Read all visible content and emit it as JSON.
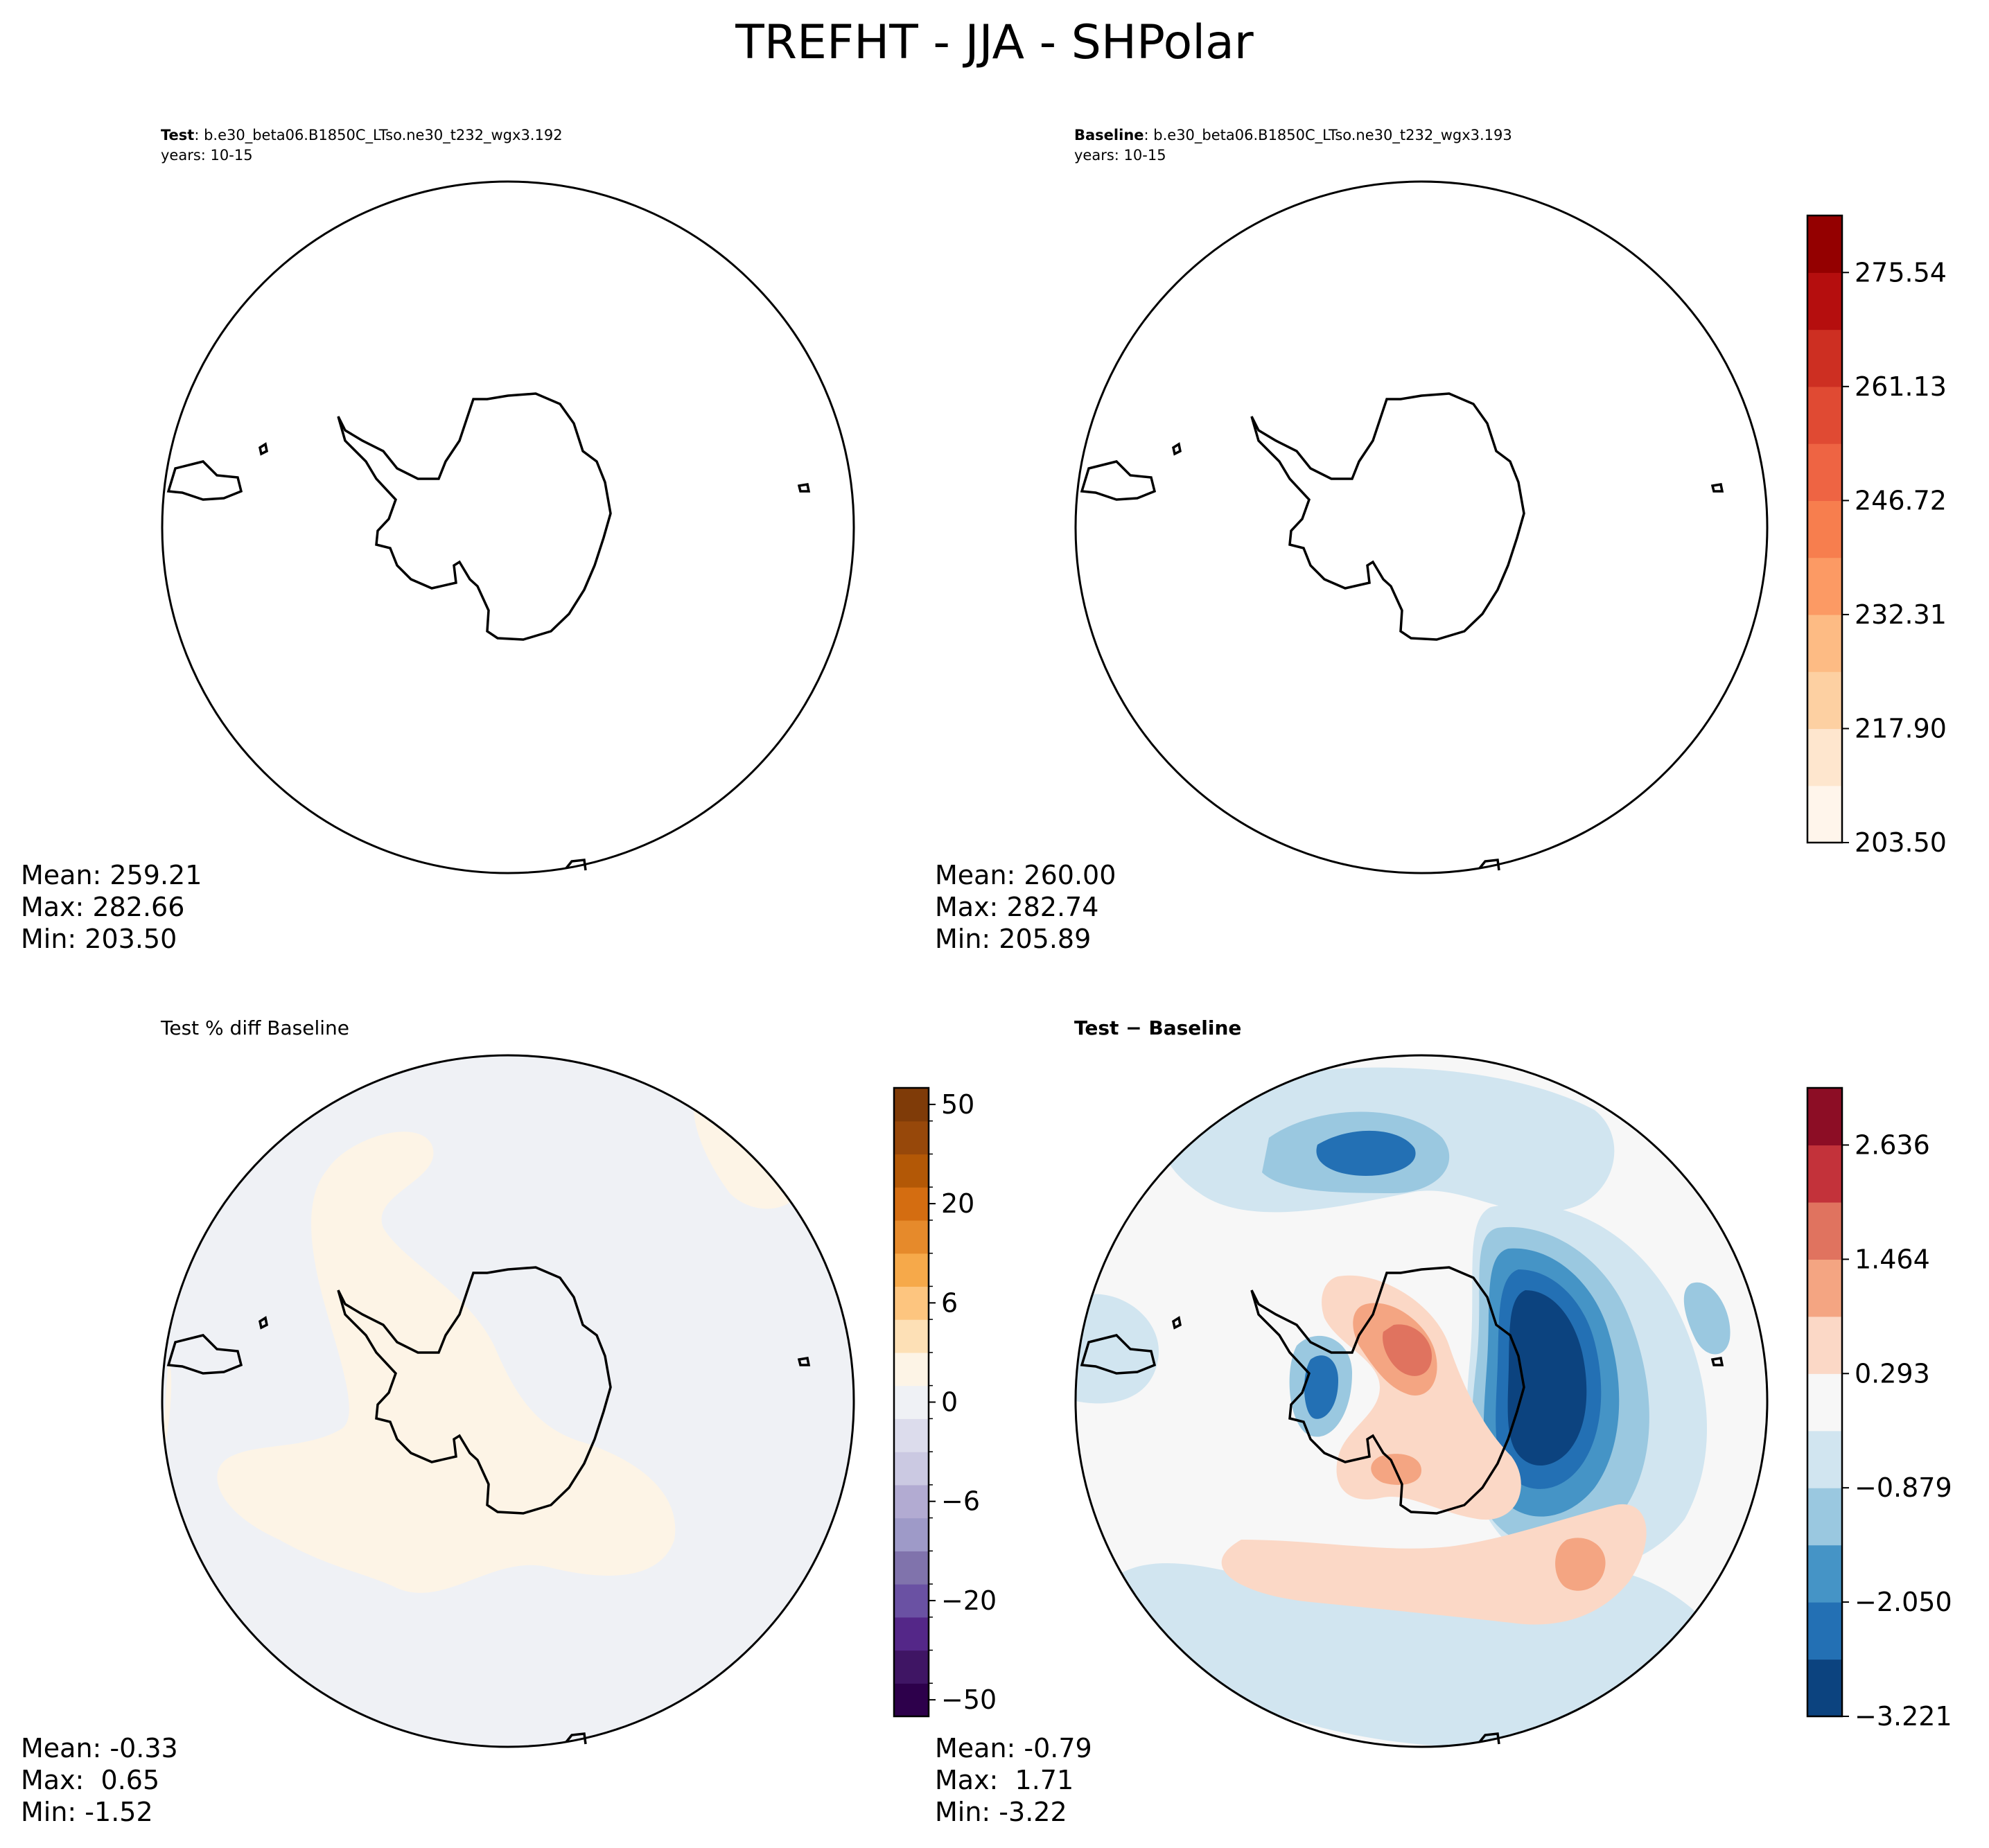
{
  "figure_title": "TREFHT - JJA - SHPolar",
  "panels": {
    "test": {
      "label": "Test",
      "case": ": b.e30_beta06.B1850C_LTso.ne30_t232_wgx3.192",
      "years": "years: 10-15",
      "stats": {
        "mean": "Mean: 259.21",
        "max": "Max: 282.66",
        "min": "Min: 203.50"
      }
    },
    "baseline": {
      "label": "Baseline",
      "case": ": b.e30_beta06.B1850C_LTso.ne30_t232_wgx3.193",
      "years": "years: 10-15",
      "stats": {
        "mean": "Mean: 260.00",
        "max": "Max: 282.74",
        "min": "Min: 205.89"
      }
    },
    "pct_diff": {
      "label": "Test % diff Baseline",
      "stats": {
        "mean": "Mean: -0.33",
        "max": "Max:  0.65",
        "min": "Min: -1.52"
      }
    },
    "diff": {
      "label": "Test − Baseline",
      "stats": {
        "mean": "Mean: -0.79",
        "max": "Max:  1.71",
        "min": "Min: -3.22"
      }
    }
  },
  "colorbars": {
    "field": {
      "ticks": [
        "203.50",
        "217.90",
        "232.31",
        "246.72",
        "261.13",
        "275.54"
      ],
      "colors": [
        "#fff5eb",
        "#fee6ce",
        "#fdd0a2",
        "#fdbb84",
        "#fc9a64",
        "#f77e4e",
        "#ee6443",
        "#e04a33",
        "#cd2f22",
        "#b50e0e",
        "#940000"
      ]
    },
    "pct": {
      "ticks": [
        "-50",
        "-20",
        "-6",
        "0",
        "6",
        "20",
        "50"
      ],
      "colors": [
        "#2d004b",
        "#3f1564",
        "#542788",
        "#6a51a3",
        "#8073ac",
        "#9e9ac8",
        "#b2abd2",
        "#cbc9e2",
        "#dcdcec",
        "#eff1f5",
        "#fdf4e6",
        "#fde0b6",
        "#fdc57f",
        "#f6a94a",
        "#e68a2b",
        "#d46d11",
        "#b35806",
        "#97480a",
        "#7f3b08"
      ]
    },
    "diff": {
      "ticks": [
        "-3.221",
        "-2.050",
        "-0.879",
        "0.293",
        "1.464",
        "2.636"
      ],
      "colors": [
        "#0c437f",
        "#2370b4",
        "#4594c6",
        "#9ac8e0",
        "#d1e5f0",
        "#f7f7f7",
        "#fbd8c6",
        "#f4a582",
        "#e0735f",
        "#c3323a",
        "#8c0d25"
      ]
    }
  }
}
